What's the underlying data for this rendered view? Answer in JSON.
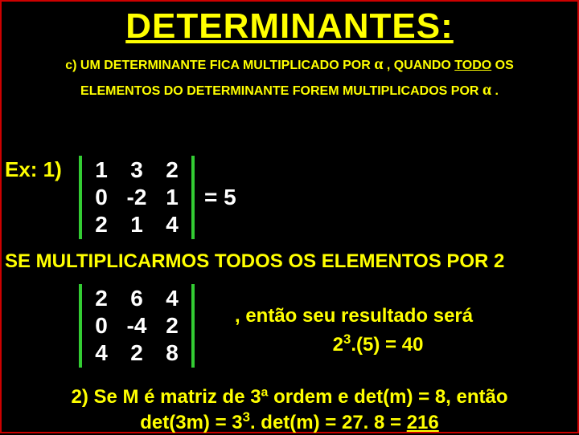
{
  "title": "DETERMINANTES:",
  "rule": {
    "part1": "c) UM DETERMINANTE FICA MULTIPLICADO POR ",
    "alpha": "α",
    "part2": " , QUANDO ",
    "todo": "TODO",
    "part3": " OS",
    "line2a": "ELEMENTOS DO DETERMINANTE FOREM MULTIPLICADOS POR ",
    "line2b": " ."
  },
  "example_label": "Ex: 1)",
  "matrix1": {
    "cells": [
      "1",
      "3",
      "2",
      "0",
      "-2",
      "1",
      "2",
      "1",
      "4"
    ],
    "result": "= 5"
  },
  "mid_text": "SE MULTIPLICARMOS TODOS OS ELEMENTOS POR 2",
  "matrix2": {
    "cells": [
      "2",
      "6",
      "4",
      "0",
      "-4",
      "2",
      "4",
      "2",
      "8"
    ]
  },
  "result": {
    "line1": ", então seu resultado será",
    "line2_pre": "2",
    "line2_sup": "3",
    "line2_post": ".(5) = 40"
  },
  "footer": {
    "l1": "2) Se  M é matriz de 3ª ordem e det(m) = 8, então",
    "l2_pre": "det(3m) = 3",
    "l2_sup": "3",
    "l2_mid": ". det(m) = 27. 8 = ",
    "l2_ans": "216"
  },
  "colors": {
    "bg": "#000000",
    "border": "#cc0000",
    "text": "#ffff00",
    "matrix_text": "#ffffff",
    "bar": "#33cc33"
  }
}
